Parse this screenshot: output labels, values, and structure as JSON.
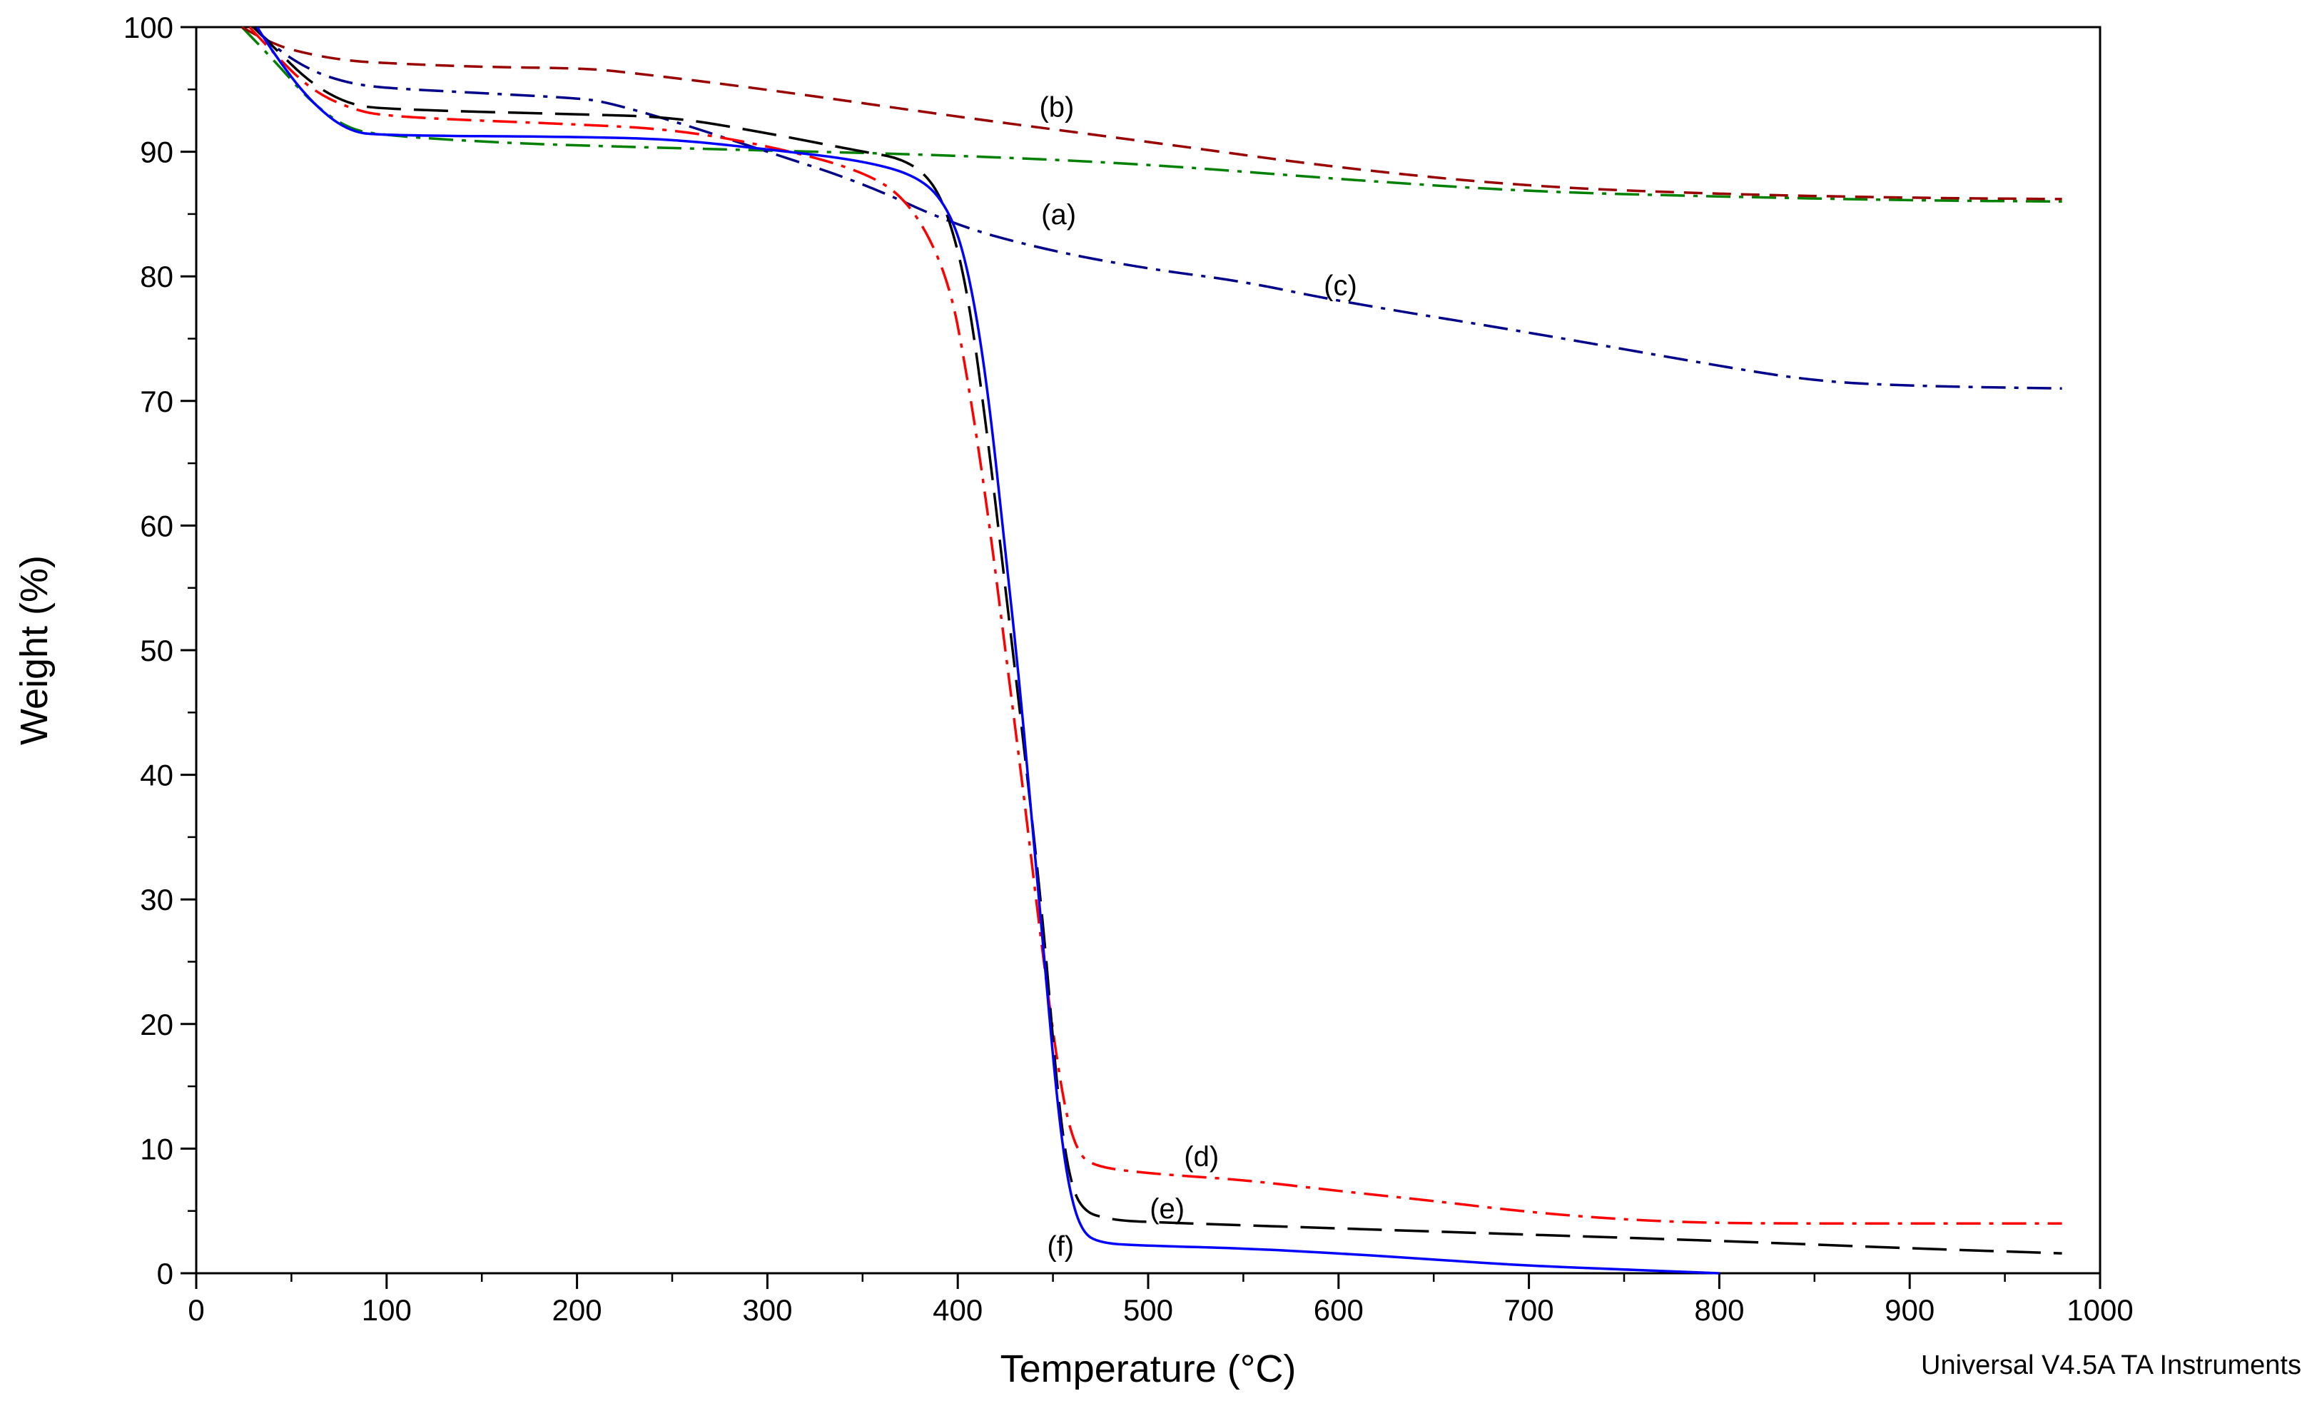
{
  "chart_data": {
    "type": "line",
    "title": "",
    "xlabel": "Temperature (°C)",
    "ylabel": "Weight (%)",
    "xlim": [
      0,
      1000
    ],
    "ylim": [
      0,
      100
    ],
    "x_ticks": [
      0,
      100,
      200,
      300,
      400,
      500,
      600,
      700,
      800,
      900,
      1000
    ],
    "y_ticks": [
      0,
      10,
      20,
      30,
      40,
      50,
      60,
      70,
      80,
      90,
      100
    ],
    "x_minor_step": 50,
    "y_minor_step": 5,
    "grid": false,
    "legend": "none",
    "series": [
      {
        "name": "(a)",
        "color": "#008000",
        "dash": "dash-dot",
        "label_at": [
          453,
          85
        ],
        "points": [
          [
            24,
            100
          ],
          [
            40,
            97.5
          ],
          [
            60,
            94
          ],
          [
            80,
            91.8
          ],
          [
            100,
            91.3
          ],
          [
            150,
            90.8
          ],
          [
            200,
            90.5
          ],
          [
            300,
            90.1
          ],
          [
            400,
            89.7
          ],
          [
            500,
            89
          ],
          [
            600,
            87.8
          ],
          [
            700,
            86.8
          ],
          [
            800,
            86.4
          ],
          [
            900,
            86.1
          ],
          [
            980,
            86
          ]
        ]
      },
      {
        "name": "(b)",
        "color": "#990000",
        "dash": "dash",
        "label_at": [
          452,
          93.6
        ],
        "points": [
          [
            24,
            100
          ],
          [
            40,
            98.6
          ],
          [
            60,
            97.8
          ],
          [
            80,
            97.3
          ],
          [
            100,
            97.1
          ],
          [
            150,
            96.8
          ],
          [
            200,
            96.7
          ],
          [
            220,
            96.5
          ],
          [
            300,
            95
          ],
          [
            400,
            92.8
          ],
          [
            500,
            90.8
          ],
          [
            600,
            88.7
          ],
          [
            700,
            87.2
          ],
          [
            800,
            86.6
          ],
          [
            900,
            86.3
          ],
          [
            980,
            86.2
          ]
        ]
      },
      {
        "name": "(c)",
        "color": "#00008B",
        "dash": "dash-dot",
        "label_at": [
          601,
          79.3
        ],
        "points": [
          [
            30,
            100
          ],
          [
            40,
            98.5
          ],
          [
            60,
            96.5
          ],
          [
            80,
            95.5
          ],
          [
            100,
            95.1
          ],
          [
            150,
            94.7
          ],
          [
            200,
            94.3
          ],
          [
            215,
            94
          ],
          [
            250,
            92.5
          ],
          [
            300,
            90
          ],
          [
            350,
            87.5
          ],
          [
            400,
            84
          ],
          [
            450,
            82
          ],
          [
            500,
            80.6
          ],
          [
            550,
            79.6
          ],
          [
            600,
            78
          ],
          [
            700,
            75.5
          ],
          [
            800,
            72.8
          ],
          [
            850,
            71.6
          ],
          [
            900,
            71.2
          ],
          [
            980,
            71
          ]
        ]
      },
      {
        "name": "(d)",
        "color": "#FF0000",
        "dash": "dash-dot",
        "label_at": [
          528,
          9.4
        ],
        "points": [
          [
            28,
            100
          ],
          [
            40,
            98
          ],
          [
            60,
            95
          ],
          [
            80,
            93.5
          ],
          [
            100,
            92.8
          ],
          [
            200,
            92.2
          ],
          [
            250,
            91.8
          ],
          [
            300,
            90.5
          ],
          [
            350,
            88.5
          ],
          [
            375,
            86
          ],
          [
            395,
            80
          ],
          [
            405,
            72
          ],
          [
            415,
            62
          ],
          [
            425,
            50
          ],
          [
            435,
            38
          ],
          [
            445,
            25
          ],
          [
            455,
            14
          ],
          [
            462,
            10
          ],
          [
            470,
            8.6
          ],
          [
            500,
            8
          ],
          [
            550,
            7.5
          ],
          [
            600,
            6.6
          ],
          [
            650,
            5.8
          ],
          [
            700,
            4.9
          ],
          [
            750,
            4.3
          ],
          [
            800,
            4
          ],
          [
            900,
            4
          ],
          [
            980,
            4
          ]
        ]
      },
      {
        "name": "(e)",
        "color": "#000000",
        "dash": "long-dash",
        "label_at": [
          510,
          5.2
        ],
        "points": [
          [
            30,
            100
          ],
          [
            40,
            98.5
          ],
          [
            60,
            95.5
          ],
          [
            80,
            93.8
          ],
          [
            100,
            93.4
          ],
          [
            200,
            93
          ],
          [
            250,
            92.8
          ],
          [
            300,
            91.5
          ],
          [
            350,
            90
          ],
          [
            370,
            89.5
          ],
          [
            385,
            88
          ],
          [
            395,
            85
          ],
          [
            405,
            79
          ],
          [
            415,
            68
          ],
          [
            425,
            55
          ],
          [
            435,
            42
          ],
          [
            445,
            28
          ],
          [
            452,
            15
          ],
          [
            458,
            8
          ],
          [
            465,
            5
          ],
          [
            480,
            4.3
          ],
          [
            500,
            4.1
          ],
          [
            600,
            3.6
          ],
          [
            700,
            3.1
          ],
          [
            800,
            2.6
          ],
          [
            900,
            2
          ],
          [
            980,
            1.6
          ]
        ]
      },
      {
        "name": "(f)",
        "color": "#0000FF",
        "dash": "solid",
        "label_at": [
          454,
          2.2
        ],
        "points": [
          [
            32,
            100
          ],
          [
            40,
            98
          ],
          [
            60,
            94
          ],
          [
            80,
            91.6
          ],
          [
            100,
            91.3
          ],
          [
            200,
            91.2
          ],
          [
            250,
            91
          ],
          [
            300,
            90.2
          ],
          [
            350,
            89.3
          ],
          [
            380,
            88
          ],
          [
            395,
            85.5
          ],
          [
            405,
            81
          ],
          [
            415,
            72
          ],
          [
            425,
            58
          ],
          [
            432,
            48
          ],
          [
            438,
            38
          ],
          [
            445,
            26
          ],
          [
            452,
            14
          ],
          [
            458,
            7
          ],
          [
            465,
            3.3
          ],
          [
            475,
            2.4
          ],
          [
            500,
            2.2
          ],
          [
            550,
            2
          ],
          [
            600,
            1.6
          ],
          [
            650,
            1.1
          ],
          [
            700,
            0.6
          ],
          [
            750,
            0.3
          ],
          [
            800,
            0
          ]
        ]
      }
    ]
  },
  "footer": {
    "note": "Universal V4.5A TA Instruments"
  }
}
